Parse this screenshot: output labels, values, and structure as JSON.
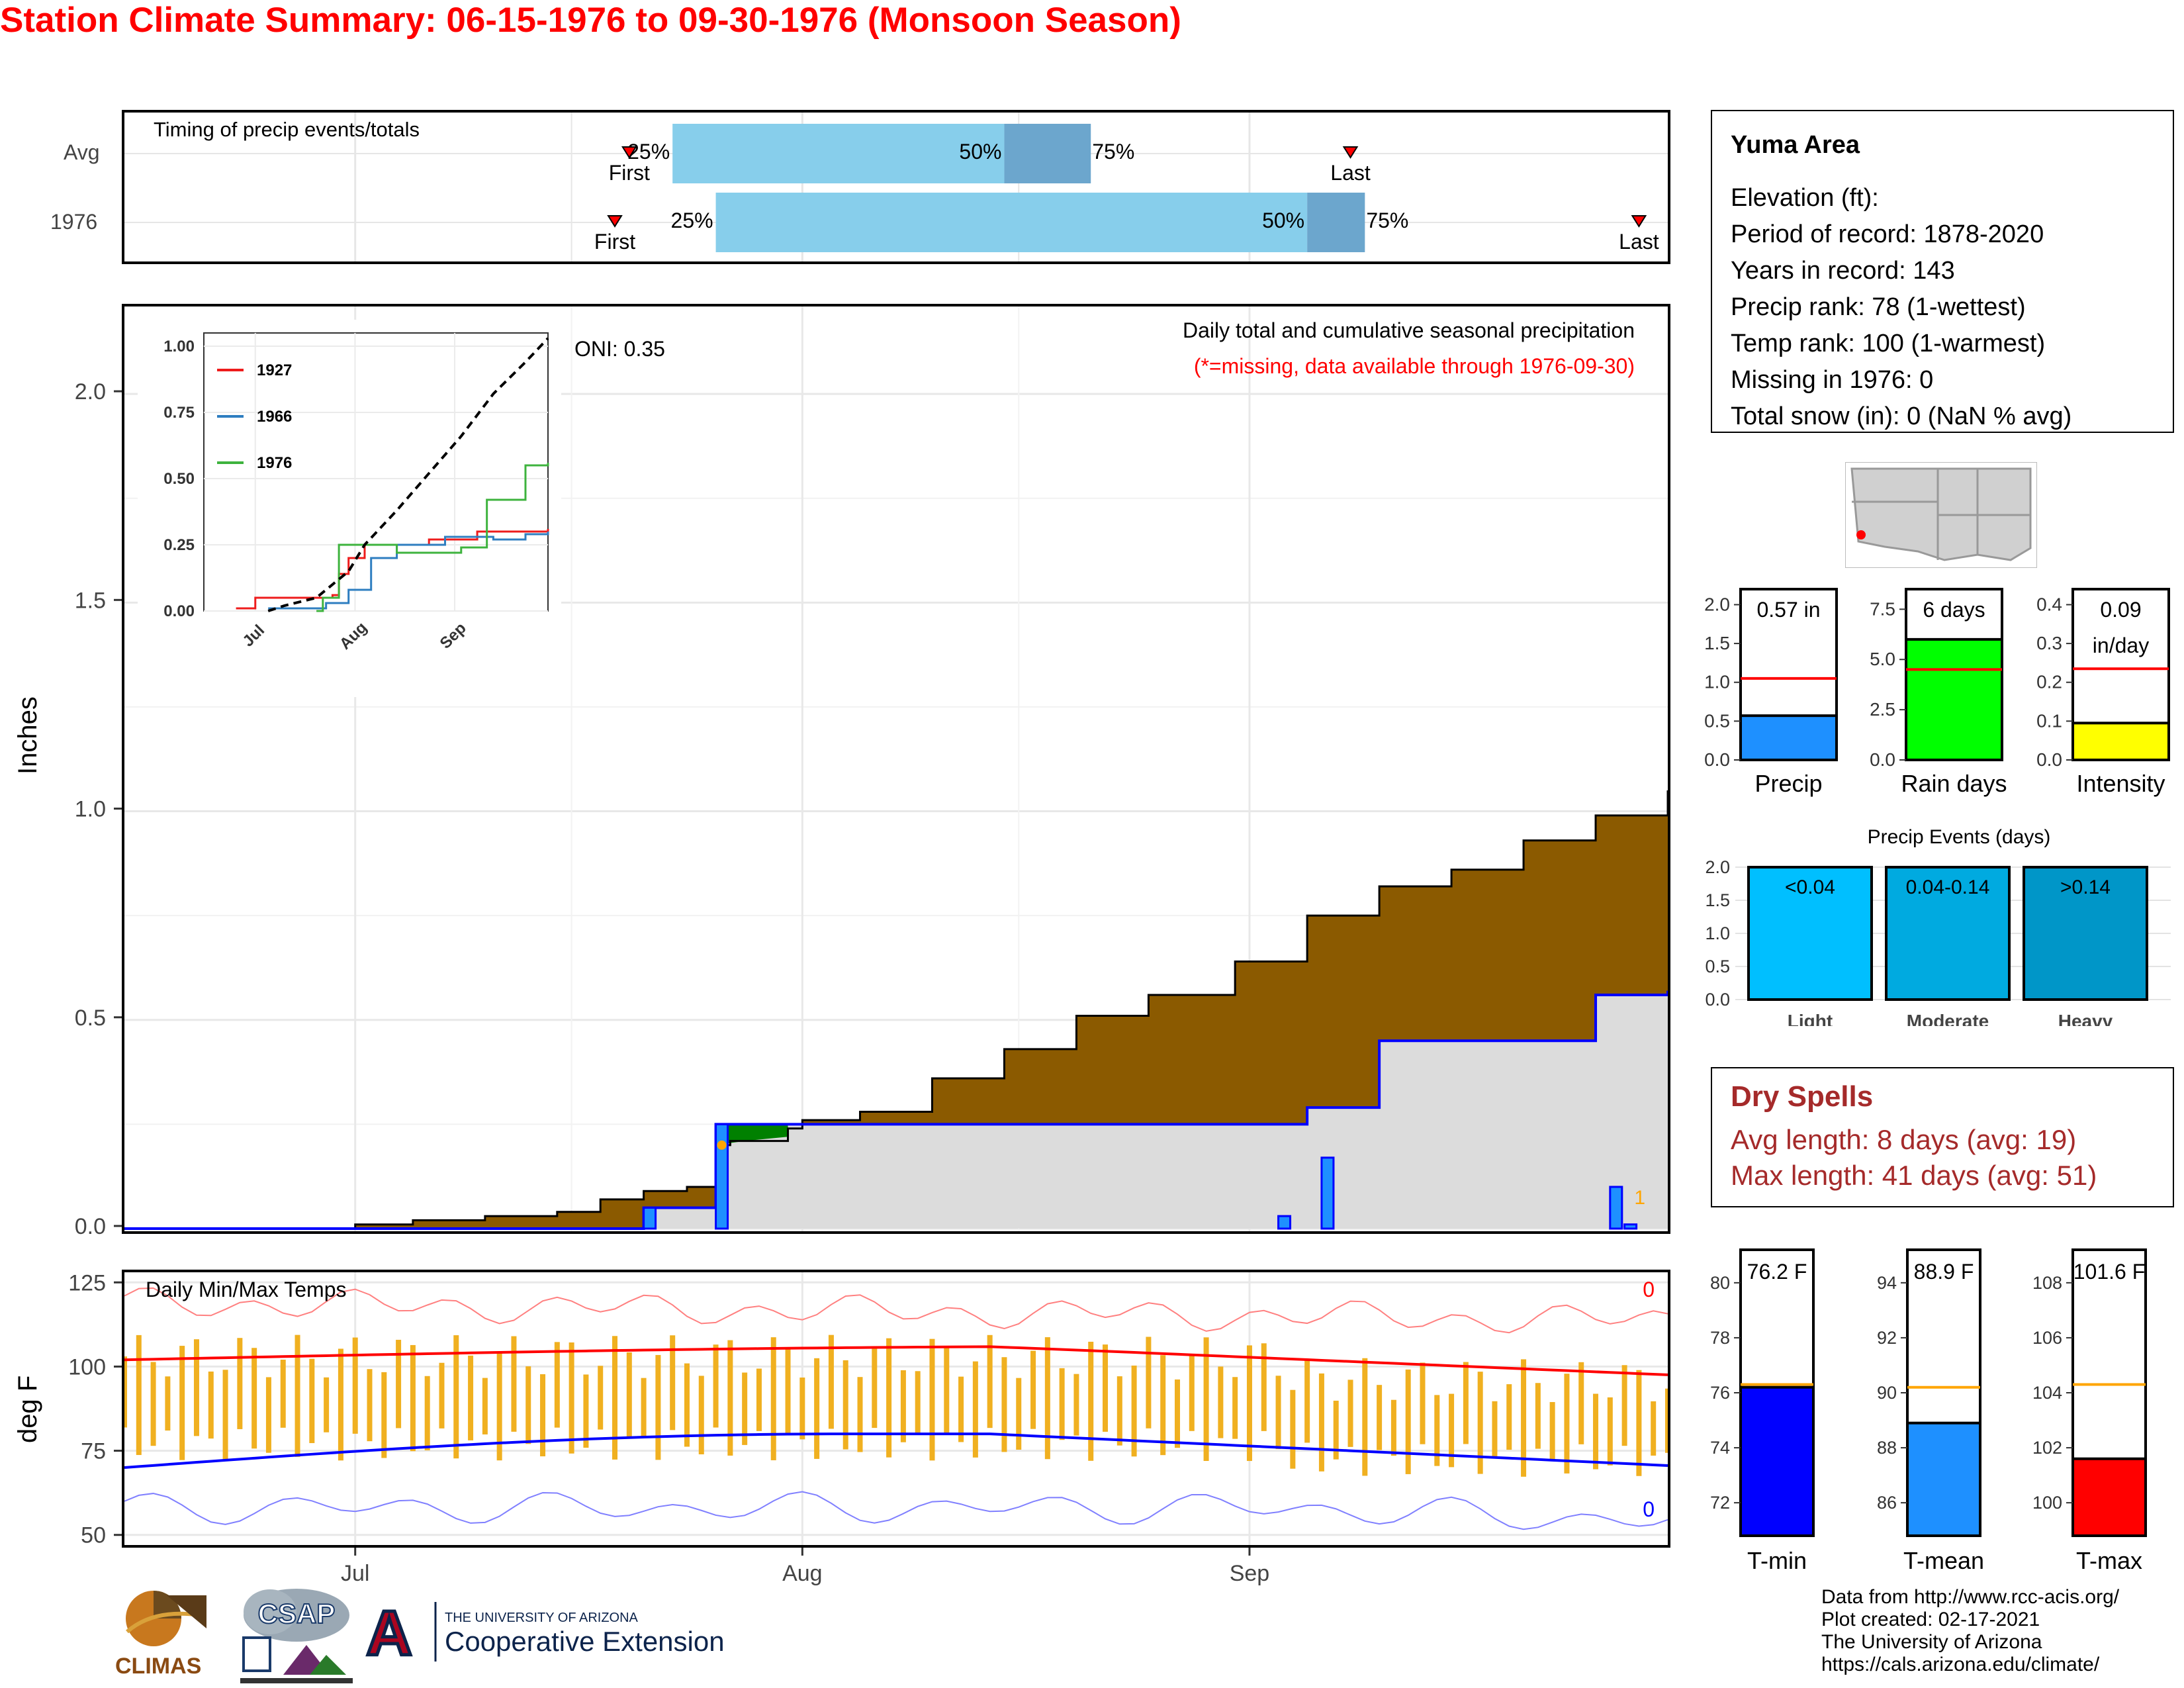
{
  "title": "Station Climate Summary: 06-15-1976 to 09-30-1976 (Monsoon Season)",
  "timing": {
    "label": "Timing of precip events/totals",
    "rows": [
      "Avg",
      "1976"
    ],
    "first_label": "First",
    "last_label": "Last",
    "avg": {
      "first": "1976-07-20",
      "p25": "1976-07-23",
      "p50": "1976-08-15",
      "p75": "1976-08-21",
      "last": "1976-09-08"
    },
    "y1976": {
      "first": "1976-07-19",
      "p25": "1976-07-26",
      "p50": "1976-09-05",
      "p75": "1976-09-09",
      "last": "1976-09-28"
    },
    "pct_labels": [
      "25%",
      "50%",
      "75%"
    ]
  },
  "main": {
    "ylabel": "Inches",
    "yticks": [
      "0.0",
      "0.5",
      "1.0",
      "1.5",
      "2.0"
    ],
    "caption": "Daily total and cumulative seasonal precipitation",
    "missing_note": "(*=missing, data available through 1976-09-30)",
    "oni": "ONI: 0.35",
    "missing_count": "1"
  },
  "inset": {
    "yticks": [
      "0.00",
      "0.25",
      "0.50",
      "0.75",
      "1.00"
    ],
    "xticks": [
      "Jul",
      "Aug",
      "Sep"
    ],
    "legend": [
      {
        "name": "1927",
        "color": "#ee1c1c"
      },
      {
        "name": "1966",
        "color": "#2e7ec0"
      },
      {
        "name": "1976",
        "color": "#3eb33e"
      }
    ]
  },
  "temps": {
    "ylabel": "deg F",
    "label": "Daily Min/Max Temps",
    "yticks": [
      "50",
      "75",
      "100",
      "125"
    ],
    "xticks": [
      "Jul",
      "Aug",
      "Sep"
    ],
    "max_count": "0",
    "min_count": "0"
  },
  "station": {
    "name": "Yuma Area",
    "lines": [
      "Elevation (ft):",
      "Period of record: 1878-2020",
      "Years in record: 143",
      "Precip rank: 78 (1-wettest)",
      "Temp rank: 100 (1-warmest)",
      "Missing in 1976: 0",
      "Total snow (in): 0 (NaN % avg)"
    ]
  },
  "mini_bars": [
    {
      "value_label": "0.57 in",
      "label": "Precip",
      "yticks": [
        "0.0",
        "0.5",
        "1.0",
        "1.5",
        "2.0"
      ],
      "ymax": 2.2,
      "value": 0.57,
      "avg": 1.05,
      "color": "#1e90ff"
    },
    {
      "value_label": "6 days",
      "label": "Rain days",
      "yticks": [
        "0.0",
        "2.5",
        "5.0",
        "7.5"
      ],
      "ymax": 8.5,
      "value": 6,
      "avg": 4.5,
      "color": "#00ff00"
    },
    {
      "value_label": "0.09\nin/day",
      "label": "Intensity",
      "yticks": [
        "0.0",
        "0.1",
        "0.2",
        "0.3",
        "0.4"
      ],
      "ymax": 0.44,
      "value": 0.095,
      "avg": 0.235,
      "color": "#ffff00"
    }
  ],
  "events": {
    "title": "Precip Events (days)",
    "yticks": [
      "0.0",
      "0.5",
      "1.0",
      "1.5",
      "2.0"
    ],
    "bars": [
      {
        "label": "Light",
        "range": "<0.04",
        "value": 2,
        "color": "#00bfff"
      },
      {
        "label": "Moderate",
        "range": "0.04-0.14",
        "value": 2,
        "color": "#00aae0"
      },
      {
        "label": "Heavy",
        "range": ">0.14",
        "value": 2,
        "color": "#0096c8"
      }
    ]
  },
  "dry_spells": {
    "title": "Dry Spells",
    "avg": "Avg length: 8 days (avg: 19)",
    "max": "Max length: 41 days (avg: 51)"
  },
  "temp_bars": [
    {
      "value_label": "76.2 F",
      "label": "T-min",
      "yticks": [
        "72",
        "74",
        "76",
        "78",
        "80"
      ],
      "ymin": 70.8,
      "ymax": 81.2,
      "value": 76.2,
      "avg": 76.3,
      "color": "#0000ff"
    },
    {
      "value_label": "88.9 F",
      "label": "T-mean",
      "yticks": [
        "86",
        "88",
        "90",
        "92",
        "94"
      ],
      "ymin": 84.8,
      "ymax": 95.2,
      "value": 88.9,
      "avg": 90.2,
      "color": "#1e90ff"
    },
    {
      "value_label": "101.6 F",
      "label": "T-max",
      "yticks": [
        "100",
        "102",
        "104",
        "106",
        "108"
      ],
      "ymin": 98.8,
      "ymax": 109.2,
      "value": 101.6,
      "avg": 104.3,
      "color": "#ff0000"
    }
  ],
  "footer": [
    "Data from http://www.rcc-acis.org/",
    "Plot created: 02-17-2021",
    "The University of Arizona",
    "https://cals.arizona.edu/climate/"
  ],
  "logos": {
    "climas": "CLIMAS",
    "csap": "CSAP",
    "ua_small": "THE UNIVERSITY OF ARIZONA",
    "ua_big": "Cooperative Extension",
    "ua_letter": "A"
  },
  "chart_data": {
    "type": "area",
    "x": [
      "06-15",
      "06-25",
      "07-01",
      "07-05",
      "07-10",
      "07-15",
      "07-18",
      "07-21",
      "07-24",
      "07-26",
      "07-27",
      "07-28",
      "07-31",
      "08-01",
      "08-05",
      "08-10",
      "08-15",
      "08-20",
      "08-25",
      "08-31",
      "09-05",
      "09-10",
      "09-15",
      "09-20",
      "09-25",
      "09-30"
    ],
    "series": [
      {
        "name": "",
        "values": [
          0.0,
          0.0,
          0.01,
          0.02,
          0.03,
          0.04,
          0.07,
          0.09,
          0.1,
          0.2,
          0.21,
          0.21,
          0.24,
          0.26,
          0.28,
          0.36,
          0.43,
          0.51,
          0.56,
          0.64,
          0.75,
          0.82,
          0.86,
          0.93,
          0.99,
          1.05
        ]
      },
      {
        "name": "1976",
        "values": [
          0.0,
          0.0,
          0.0,
          0.0,
          0.0,
          0.0,
          0.0,
          0.05,
          0.05,
          0.25,
          0.25,
          0.25,
          0.25,
          0.25,
          0.25,
          0.25,
          0.25,
          0.25,
          0.25,
          0.25,
          0.29,
          0.45,
          0.45,
          0.45,
          0.56,
          0.57
        ]
      }
    ],
    "ylim": [
      0,
      2.2
    ],
    "ylabel": "Inches"
  }
}
